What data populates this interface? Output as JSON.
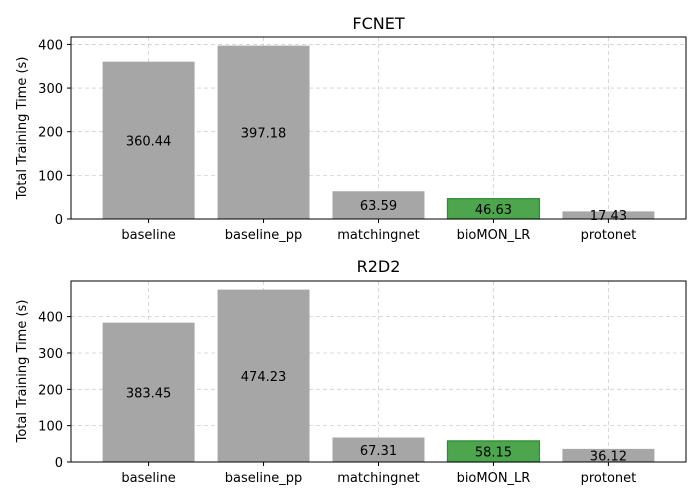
{
  "chart_data": [
    {
      "type": "bar",
      "title": "FCNET",
      "xlabel": "",
      "ylabel": "Total Training Time (s)",
      "categories": [
        "baseline",
        "baseline_pp",
        "matchingnet",
        "bioMON_LR",
        "protonet"
      ],
      "values": [
        360.44,
        397.18,
        63.59,
        46.63,
        17.43
      ],
      "data_labels": [
        "360.44",
        "397.18",
        "63.59",
        "46.63",
        "17.43"
      ],
      "yticks": [
        0,
        100,
        200,
        300,
        400
      ],
      "ylim": [
        0,
        417
      ],
      "grid": true,
      "highlight_index": 3,
      "colors": {
        "bar": "#a6a6a6",
        "highlight": "#4da64d",
        "highlight_edge": "#2e8b2e"
      }
    },
    {
      "type": "bar",
      "title": "R2D2",
      "xlabel": "",
      "ylabel": "Total Training Time (s)",
      "categories": [
        "baseline",
        "baseline_pp",
        "matchingnet",
        "bioMON_LR",
        "protonet"
      ],
      "values": [
        383.45,
        474.23,
        67.31,
        58.15,
        36.12
      ],
      "data_labels": [
        "383.45",
        "474.23",
        "67.31",
        "58.15",
        "36.12"
      ],
      "yticks": [
        0,
        100,
        200,
        300,
        400
      ],
      "ylim": [
        0,
        498
      ],
      "grid": true,
      "highlight_index": 3,
      "colors": {
        "bar": "#a6a6a6",
        "highlight": "#4da64d",
        "highlight_edge": "#2e8b2e"
      }
    }
  ]
}
